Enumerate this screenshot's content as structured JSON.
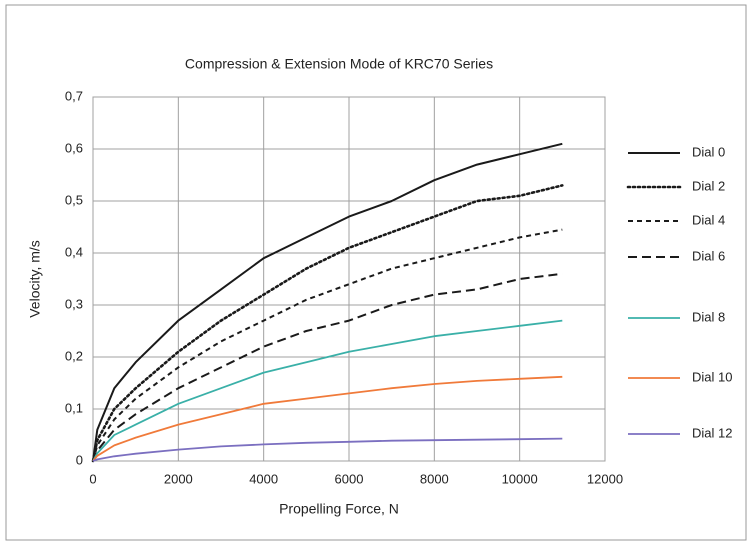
{
  "chart_data": {
    "type": "line",
    "title": "Compression & Extension Mode of KRC70 Series",
    "xlabel": "Propelling Force, N",
    "ylabel": "Velocity, m/s",
    "x": [
      0,
      100,
      500,
      1000,
      2000,
      3000,
      4000,
      5000,
      6000,
      7000,
      8000,
      9000,
      10000,
      11000
    ],
    "series": [
      {
        "name": "Dial 0",
        "color": "#1a1a1a",
        "style": "solid",
        "values": [
          0,
          0.06,
          0.14,
          0.19,
          0.27,
          0.33,
          0.39,
          0.43,
          0.47,
          0.5,
          0.54,
          0.57,
          0.59,
          0.61
        ]
      },
      {
        "name": "Dial 2",
        "color": "#1a1a1a",
        "style": "dotted",
        "values": [
          0,
          0.04,
          0.1,
          0.14,
          0.21,
          0.27,
          0.32,
          0.37,
          0.41,
          0.44,
          0.47,
          0.5,
          0.51,
          0.53
        ]
      },
      {
        "name": "Dial 4",
        "color": "#1a1a1a",
        "style": "dashed",
        "values": [
          0,
          0.03,
          0.08,
          0.12,
          0.18,
          0.23,
          0.27,
          0.31,
          0.34,
          0.37,
          0.39,
          0.41,
          0.43,
          0.445
        ]
      },
      {
        "name": "Dial 6",
        "color": "#1a1a1a",
        "style": "longdash",
        "values": [
          0,
          0.02,
          0.06,
          0.09,
          0.14,
          0.18,
          0.22,
          0.25,
          0.27,
          0.3,
          0.32,
          0.33,
          0.35,
          0.36
        ]
      },
      {
        "name": "Dial 8",
        "color": "#3ab0a8",
        "style": "solid",
        "values": [
          0,
          0.015,
          0.05,
          0.07,
          0.11,
          0.14,
          0.17,
          0.19,
          0.21,
          0.225,
          0.24,
          0.25,
          0.26,
          0.27
        ]
      },
      {
        "name": "Dial 10",
        "color": "#f07a3a",
        "style": "solid",
        "values": [
          0,
          0.01,
          0.03,
          0.045,
          0.07,
          0.09,
          0.11,
          0.12,
          0.13,
          0.14,
          0.148,
          0.154,
          0.158,
          0.162
        ]
      },
      {
        "name": "Dial 12",
        "color": "#7b6fc0",
        "style": "solid",
        "values": [
          0,
          0.003,
          0.009,
          0.014,
          0.022,
          0.028,
          0.032,
          0.035,
          0.037,
          0.039,
          0.04,
          0.041,
          0.042,
          0.043
        ]
      }
    ],
    "xlim": [
      0,
      12000
    ],
    "xticks": [
      0,
      2000,
      4000,
      6000,
      8000,
      10000,
      12000
    ],
    "ylim": [
      0,
      0.7
    ],
    "yticks": [
      0,
      {
        "value": 0.1,
        "label": "0,1"
      },
      {
        "value": 0.2,
        "label": "0,2"
      },
      {
        "value": 0.3,
        "label": "0,3"
      },
      {
        "value": 0.4,
        "label": "0,4"
      },
      {
        "value": 0.5,
        "label": "0,5"
      },
      {
        "value": 0.6,
        "label": "0,6"
      },
      {
        "value": 0.7,
        "label": "0,7"
      }
    ],
    "grid": true,
    "legend": "right"
  }
}
